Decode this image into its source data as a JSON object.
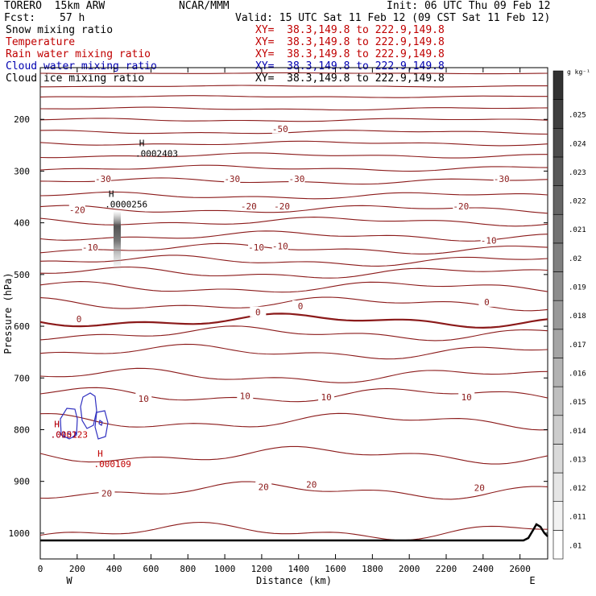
{
  "header": {
    "model": "TORERO  15km ARW",
    "center": "NCAR/MMM",
    "init": "Init: 06 UTC Thu 09 Feb 12",
    "fcst_label": "Fcst:",
    "fcst_value": "57 h",
    "valid": "Valid: 15 UTC Sat 11 Feb 12 (09 CST Sat 11 Feb 12)"
  },
  "legend": [
    {
      "label": "Snow mixing ratio",
      "xy": "XY=  38.3,149.8 to 222.9,149.8",
      "color": "#000000"
    },
    {
      "label": "Temperature",
      "xy": "XY=  38.3,149.8 to 222.9,149.8",
      "color": "#c00000"
    },
    {
      "label": "Rain water mixing ratio",
      "xy": "XY=  38.3,149.8 to 222.9,149.8",
      "color": "#c00000"
    },
    {
      "label": "Cloud water mixing ratio",
      "xy": "XY=  38.3,149.8 to 222.9,149.8",
      "color": "#0000b0"
    },
    {
      "label": "Cloud ice mixing ratio",
      "xy": "XY=  38.3,149.8 to 222.9,149.8",
      "color": "#000000"
    }
  ],
  "chart_data": {
    "type": "cross-section",
    "xlabel": "Distance (km)",
    "ylabel": "Pressure (hPa)",
    "xlim": [
      0,
      2750
    ],
    "ylim": [
      1050,
      100
    ],
    "x_ticks": [
      0,
      200,
      400,
      600,
      800,
      1000,
      1200,
      1400,
      1600,
      1800,
      2000,
      2200,
      2400,
      2600
    ],
    "y_ticks": [
      200,
      300,
      400,
      500,
      600,
      700,
      800,
      900,
      1000
    ],
    "west_label": "W",
    "east_label": "E",
    "colorbar": {
      "unit": "g kg⁻¹",
      "ticks": [
        ".01",
        ".011",
        ".012",
        ".013",
        ".014",
        ".015",
        ".016",
        ".017",
        ".018",
        ".019",
        ".02",
        ".021",
        ".022",
        ".023",
        ".024",
        ".025"
      ]
    },
    "temperature_labels": [
      {
        "text": "-50",
        "x": 1300,
        "p": 218
      },
      {
        "text": "-30",
        "x": 340,
        "p": 315
      },
      {
        "text": "-30",
        "x": 1040,
        "p": 315
      },
      {
        "text": "-30",
        "x": 1390,
        "p": 315
      },
      {
        "text": "-30",
        "x": 2500,
        "p": 315
      },
      {
        "text": "-20",
        "x": 200,
        "p": 375
      },
      {
        "text": "-20",
        "x": 1130,
        "p": 368
      },
      {
        "text": "-20",
        "x": 1310,
        "p": 368
      },
      {
        "text": "-20",
        "x": 2280,
        "p": 368
      },
      {
        "text": "-10",
        "x": 270,
        "p": 447
      },
      {
        "text": "-10",
        "x": 1170,
        "p": 447
      },
      {
        "text": "-10",
        "x": 1300,
        "p": 445
      },
      {
        "text": "-10",
        "x": 2430,
        "p": 434
      },
      {
        "text": "0",
        "x": 210,
        "p": 586
      },
      {
        "text": "0",
        "x": 1180,
        "p": 573
      },
      {
        "text": "0",
        "x": 1410,
        "p": 561
      },
      {
        "text": "0",
        "x": 2420,
        "p": 553
      },
      {
        "text": "10",
        "x": 560,
        "p": 740
      },
      {
        "text": "10",
        "x": 1110,
        "p": 735
      },
      {
        "text": "10",
        "x": 1550,
        "p": 737
      },
      {
        "text": "10",
        "x": 2310,
        "p": 737
      },
      {
        "text": "20",
        "x": 360,
        "p": 923
      },
      {
        "text": "20",
        "x": 1210,
        "p": 911
      },
      {
        "text": "20",
        "x": 1470,
        "p": 906
      },
      {
        "text": "20",
        "x": 2380,
        "p": 912
      }
    ],
    "maxima": [
      {
        "mark": "H",
        "value": ".0002403",
        "x": 550,
        "p": 252,
        "color": "#000000"
      },
      {
        "mark": "H",
        "value": ".0000256",
        "x": 385,
        "p": 350,
        "color": "#000000"
      },
      {
        "mark": "H",
        "value": ".0152",
        "x": 90,
        "p": 795,
        "color": "#0000b0"
      },
      {
        "mark": "H",
        "value": ".000123",
        "x": 90,
        "p": 795,
        "color": "#c00000"
      },
      {
        "mark": "H",
        "value": ".000109",
        "x": 325,
        "p": 852,
        "color": "#c00000"
      }
    ]
  }
}
